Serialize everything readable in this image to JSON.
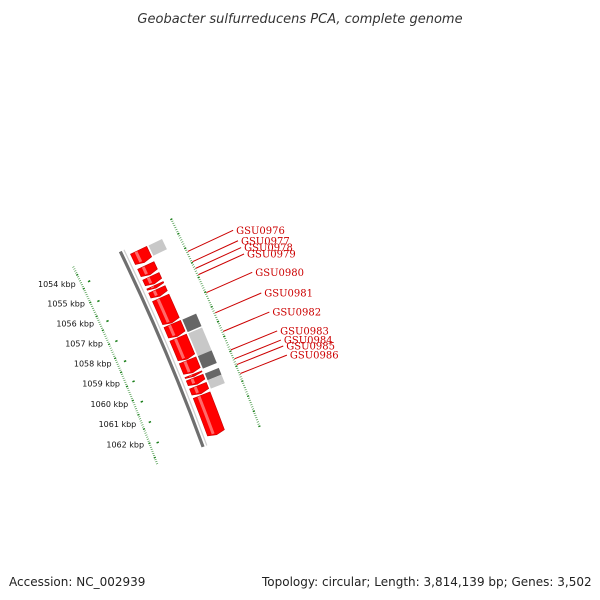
{
  "title": "Geobacter sulfurreducens PCA, complete genome",
  "footer": {
    "accession": "Accession: NC_002939",
    "topology": "Topology: circular; Length: 3,814,139 bp; Genes: 3,502"
  },
  "colors": {
    "forward_gene": "#ff0000",
    "backbone": "#777777",
    "gc_track": "#1a7f1a",
    "label": "#cc0000",
    "feature_dark": "#666666",
    "feature_light": "#c8c8c8"
  },
  "scale": {
    "unit": "kbp",
    "ticks": [
      {
        "value": 1054,
        "label": "1054 kbp"
      },
      {
        "value": 1055,
        "label": "1055 kbp"
      },
      {
        "value": 1056,
        "label": "1056 kbp"
      },
      {
        "value": 1057,
        "label": "1057 kbp"
      },
      {
        "value": 1058,
        "label": "1058 kbp"
      },
      {
        "value": 1059,
        "label": "1059 kbp"
      },
      {
        "value": 1060,
        "label": "1060 kbp"
      },
      {
        "value": 1061,
        "label": "1061 kbp"
      },
      {
        "value": 1062,
        "label": "1062 kbp"
      }
    ]
  },
  "genes": [
    {
      "name": "",
      "start_kbp": 1053.7,
      "end_kbp": 1054.3
    },
    {
      "name": "GSU0976",
      "start_kbp": 1054.45,
      "end_kbp": 1054.9
    },
    {
      "name": "GSU0977",
      "start_kbp": 1054.98,
      "end_kbp": 1055.35
    },
    {
      "name": "GSU0978",
      "start_kbp": 1055.42,
      "end_kbp": 1055.55
    },
    {
      "name": "GSU0979",
      "start_kbp": 1055.62,
      "end_kbp": 1055.95
    },
    {
      "name": "GSU0980",
      "start_kbp": 1056.03,
      "end_kbp": 1057.25
    },
    {
      "name": "GSU0981",
      "start_kbp": 1057.3,
      "end_kbp": 1057.9
    },
    {
      "name": "GSU0982",
      "start_kbp": 1057.96,
      "end_kbp": 1059.0
    },
    {
      "name": "GSU0983",
      "start_kbp": 1059.05,
      "end_kbp": 1059.65
    },
    {
      "name": "GSU0984",
      "start_kbp": 1059.72,
      "end_kbp": 1059.82
    },
    {
      "name": "GSU0985",
      "start_kbp": 1059.88,
      "end_kbp": 1060.2
    },
    {
      "name": "GSU0986",
      "start_kbp": 1060.27,
      "end_kbp": 1060.65
    },
    {
      "name": "",
      "start_kbp": 1060.72,
      "end_kbp": 1062.6
    }
  ],
  "features": [
    {
      "tone": "light",
      "start_kbp": 1053.7,
      "end_kbp": 1054.2
    },
    {
      "tone": "dark",
      "start_kbp": 1057.3,
      "end_kbp": 1057.9
    },
    {
      "tone": "light",
      "start_kbp": 1057.96,
      "end_kbp": 1059.05
    },
    {
      "tone": "dark",
      "start_kbp": 1059.05,
      "end_kbp": 1059.65
    },
    {
      "tone": "dark",
      "start_kbp": 1059.88,
      "end_kbp": 1060.2
    },
    {
      "tone": "light",
      "start_kbp": 1060.2,
      "end_kbp": 1060.6
    }
  ]
}
